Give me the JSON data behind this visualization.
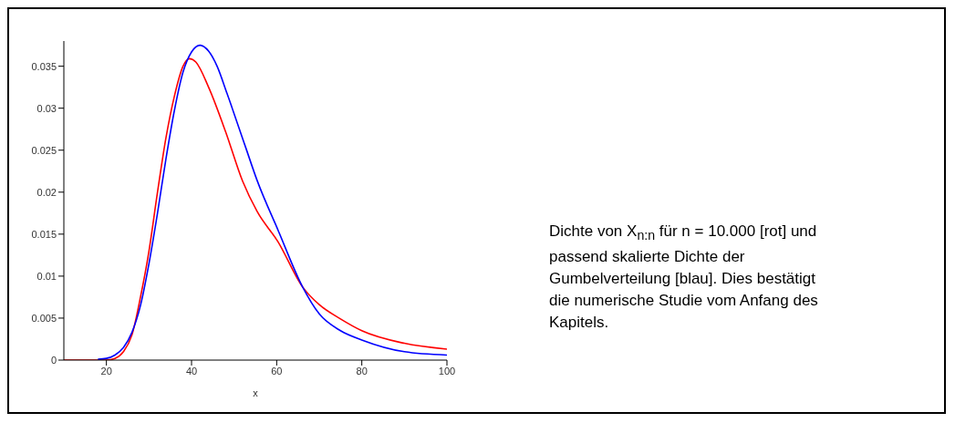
{
  "chart_data": {
    "type": "line",
    "xlabel": "x",
    "xlim": [
      10,
      100
    ],
    "xticks": [
      20,
      40,
      60,
      80,
      100
    ],
    "ylim": [
      0,
      0.038
    ],
    "yticks": [
      0,
      0.005,
      0.01,
      0.015,
      0.02,
      0.025,
      0.03,
      0.035
    ],
    "marker": "none",
    "line_style": "solid",
    "series": [
      {
        "color": "#ff0000",
        "x": [
          10,
          16,
          20,
          22,
          24,
          26,
          28,
          30,
          32,
          34,
          36,
          38,
          39.5,
          41,
          44,
          48,
          52,
          55.4,
          60.3,
          66.1,
          70,
          75,
          80,
          90,
          100
        ],
        "values": [
          0,
          0,
          0,
          0.0002,
          0.001,
          0.003,
          0.0075,
          0.013,
          0.02,
          0.0265,
          0.0315,
          0.035,
          0.0359,
          0.0355,
          0.0325,
          0.0272,
          0.0213,
          0.0177,
          0.0141,
          0.0087,
          0.0066,
          0.0049,
          0.0035,
          0.002,
          0.0013
        ]
      },
      {
        "color": "#0000ff",
        "x": [
          18,
          20,
          22,
          24,
          26,
          28,
          30,
          32,
          34,
          36,
          38,
          40,
          42,
          44,
          46,
          48.3,
          52.6,
          55.4,
          60.3,
          66.1,
          70,
          75,
          80,
          90,
          100
        ],
        "values": [
          0.0001,
          0.0002,
          0.0006,
          0.0015,
          0.0033,
          0.0065,
          0.0115,
          0.0175,
          0.024,
          0.0298,
          0.0343,
          0.0367,
          0.0375,
          0.0368,
          0.035,
          0.0318,
          0.0255,
          0.0214,
          0.0155,
          0.0087,
          0.0055,
          0.0035,
          0.0024,
          0.001,
          0.0006
        ]
      }
    ],
    "annotations": [
      "Dichte von X$_{n:n}$ für n = 10.000 [rot] und passend skalierte Dichte der Gumbelverteilung [blau]. Dies bestätigt die numerische Studie vom Anfang des Kapitels."
    ]
  }
}
